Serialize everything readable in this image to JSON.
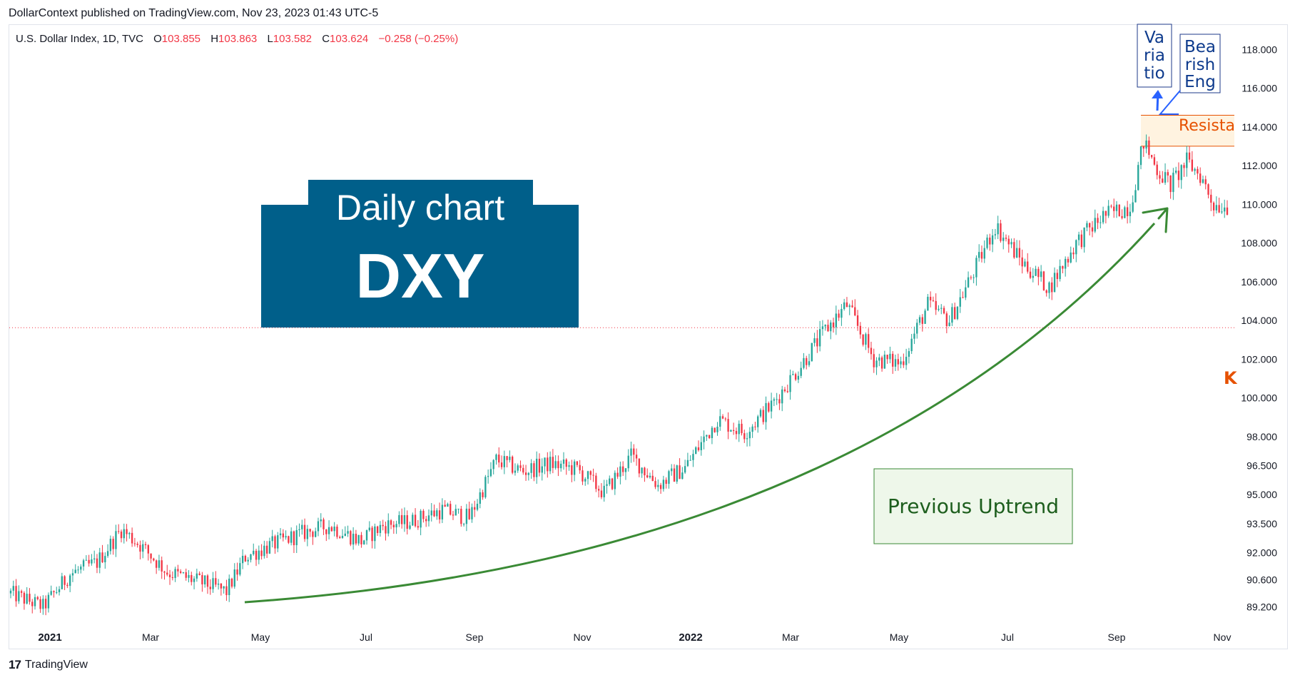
{
  "header": {
    "publisher": "DollarContext published on TradingView.com, Nov 23, 2023 01:43 UTC-5"
  },
  "legend": {
    "symbol": "U.S. Dollar Index, 1D, TVC",
    "o_label": "O",
    "o": "103.855",
    "h_label": "H",
    "h": "103.863",
    "l_label": "L",
    "l": "103.582",
    "c_label": "C",
    "c": "103.624",
    "change": "−0.258 (−0.25%)"
  },
  "footer": {
    "brand": "TradingView",
    "logo_icon": "tradingview-logo-icon"
  },
  "title_box": {
    "line1": "Daily chart",
    "line2": "DXY",
    "color": "#005f8a"
  },
  "annotations": {
    "previous_uptrend": "Previous Uptrend",
    "variation": [
      "Va",
      "ria",
      "tio"
    ],
    "bearish": [
      "Bea",
      "rish",
      "Eng"
    ],
    "resistance": "Resista",
    "k_marker": "K"
  },
  "colors": {
    "up": "#26a69a",
    "down": "#f23645",
    "uptrend_arrow": "#3a8a35",
    "resistance": "#e65100",
    "note_blue": "#0d3a8c",
    "current_line": "#f23645"
  },
  "chart_data": {
    "type": "candlestick",
    "title": "",
    "ylim": [
      88.3,
      119.3
    ],
    "y_ticks": [
      "118.000",
      "116.000",
      "114.000",
      "112.000",
      "110.000",
      "108.000",
      "106.000",
      "104.000",
      "102.000",
      "100.000",
      "98.000",
      "96.500",
      "95.000",
      "93.500",
      "92.000",
      "90.600",
      "89.200"
    ],
    "x_tick_labels": [
      "2021",
      "Mar",
      "May",
      "Jul",
      "Sep",
      "Nov",
      "2022",
      "Mar",
      "May",
      "Jul",
      "Sep",
      "Nov"
    ],
    "current_price": 103.624,
    "resistance_zone": [
      113.0,
      114.6
    ],
    "series": [
      {
        "values": [
          [
            0,
            89.9
          ],
          [
            12,
            89.2
          ],
          [
            22,
            90.9
          ],
          [
            32,
            91.5
          ],
          [
            41,
            93.2
          ],
          [
            48,
            92.4
          ],
          [
            58,
            91.0
          ],
          [
            70,
            90.5
          ],
          [
            80,
            90.0
          ],
          [
            87,
            91.8
          ],
          [
            95,
            92.3
          ],
          [
            108,
            93.0
          ],
          [
            118,
            93.4
          ],
          [
            130,
            92.6
          ],
          [
            138,
            93.4
          ],
          [
            148,
            93.6
          ],
          [
            160,
            94.2
          ],
          [
            170,
            93.8
          ],
          [
            180,
            96.8
          ],
          [
            190,
            96.2
          ],
          [
            200,
            96.6
          ],
          [
            210,
            96.3
          ],
          [
            220,
            95.1
          ],
          [
            230,
            97.0
          ],
          [
            240,
            95.5
          ],
          [
            250,
            96.4
          ],
          [
            262,
            98.9
          ],
          [
            272,
            98.2
          ],
          [
            282,
            99.6
          ],
          [
            292,
            101.5
          ],
          [
            302,
            103.5
          ],
          [
            310,
            104.8
          ],
          [
            320,
            102.0
          ],
          [
            330,
            101.8
          ],
          [
            340,
            104.8
          ],
          [
            348,
            104.0
          ],
          [
            357,
            106.5
          ],
          [
            365,
            108.9
          ],
          [
            375,
            107.0
          ],
          [
            385,
            105.7
          ],
          [
            395,
            108.0
          ],
          [
            405,
            109.4
          ],
          [
            415,
            109.9
          ],
          [
            420,
            113.2
          ],
          [
            425,
            111.8
          ],
          [
            430,
            111.0
          ],
          [
            436,
            112.2
          ],
          [
            441,
            111.5
          ],
          [
            446,
            110.0
          ],
          [
            451,
            109.9
          ]
        ]
      }
    ]
  }
}
